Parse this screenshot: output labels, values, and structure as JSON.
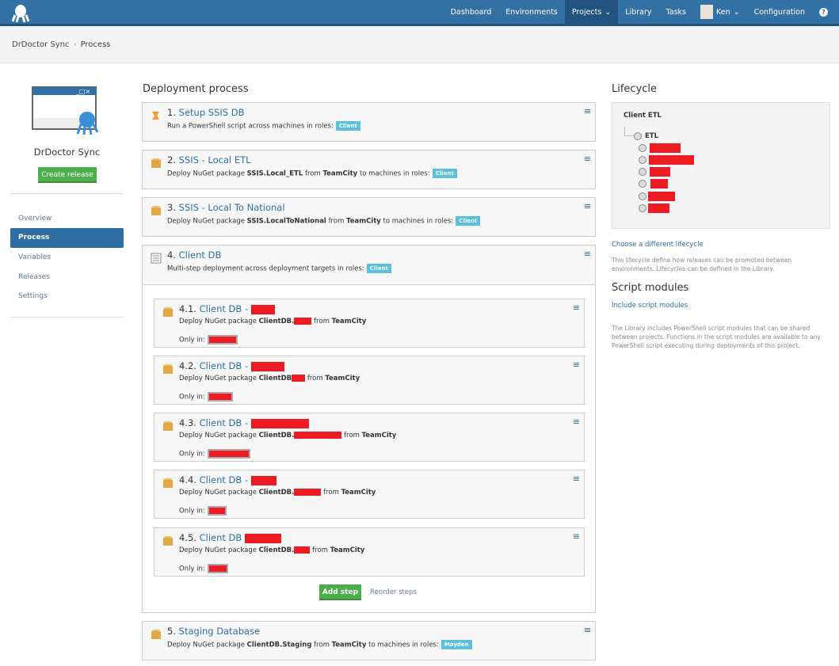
{
  "nav": {
    "items": [
      "Dashboard",
      "Environments",
      "Projects",
      "Library",
      "Tasks",
      "Ken",
      "Configuration"
    ],
    "help": "?"
  },
  "breadcrumb": {
    "parent": "DrDoctor Sync",
    "current": "Process"
  },
  "sidebar": {
    "project_name": "DrDoctor Sync",
    "create_release": "Create release",
    "items": [
      "Overview",
      "Process",
      "Variables",
      "Releases",
      "Settings"
    ],
    "active": "Process"
  },
  "main": {
    "heading": "Deployment process",
    "steps": [
      {
        "num": "1.",
        "title": "Setup SSIS DB",
        "desc": "Run a PowerShell script across machines in roles:",
        "role": "Client"
      },
      {
        "num": "2.",
        "title": "SSIS - Local ETL",
        "pre": "Deploy NuGet package",
        "pkg": "SSIS.Local_ETL",
        "from": "from",
        "feed": "TeamCity",
        "post": "to machines in roles:",
        "role": "Client"
      },
      {
        "num": "3.",
        "title": "SSIS - Local To National",
        "pre": "Deploy NuGet package",
        "pkg": "SSIS.LocalToNational",
        "from": "from",
        "feed": "TeamCity",
        "post": "to machines in roles:",
        "role": "Client"
      },
      {
        "num": "4.",
        "title": "Client DB",
        "desc": "Multi-step deployment across deployment targets in roles:",
        "role": "Client"
      },
      {
        "num": "5.",
        "title": "Staging Database",
        "pre": "Deploy NuGet package",
        "pkg": "ClientDB.Staging",
        "from": "from",
        "feed": "TeamCity",
        "post": "to machines in roles:",
        "role": "Mayden"
      }
    ],
    "substeps": [
      {
        "num": "4.1.",
        "title": "Client DB -",
        "pre": "Deploy NuGet package",
        "pkg": "ClientDB.",
        "from": "from",
        "feed": "TeamCity",
        "only": "Only in:"
      },
      {
        "num": "4.2.",
        "title": "Client DB -",
        "pre": "Deploy NuGet package",
        "pkg": "ClientDB",
        "from": "from",
        "feed": "TeamCity",
        "only": "Only in:"
      },
      {
        "num": "4.3.",
        "title": "Client DB -",
        "pre": "Deploy NuGet package",
        "pkg": "ClientDB.",
        "from": "from",
        "feed": "TeamCity",
        "only": "Only in:"
      },
      {
        "num": "4.4.",
        "title": "Client DB -",
        "pre": "Deploy NuGet package",
        "pkg": "ClientDB.",
        "from": "from",
        "feed": "TeamCity",
        "only": "Only in:"
      },
      {
        "num": "4.5.",
        "title": "Client DB",
        "pre": "Deploy NuGet package",
        "pkg": "ClientDB.",
        "from": "from",
        "feed": "TeamCity",
        "only": "Only in:"
      }
    ],
    "add_step": "Add step",
    "reorder": "Reorder steps"
  },
  "right": {
    "lifecycle_heading": "Lifecycle",
    "lifecycle_name": "Client ETL",
    "phase": "ETL",
    "choose": "Choose a different lifecycle",
    "lifecycle_help": "This lifecycle define how releases can be promoted between environments. Lifecycles can be defined in the Library.",
    "script_heading": "Script modules",
    "include": "Include script modules",
    "script_help": "The Library includes PowerShell script modules that can be shared between projects. Functions in the script modules are available to any PowerShell script executing during deployments of this project."
  },
  "colors": {
    "nav": "#3370a3",
    "active": "#22527f",
    "green": "#4cae4c",
    "badge": "#5bc0de",
    "redaction": "#ed1c24"
  }
}
